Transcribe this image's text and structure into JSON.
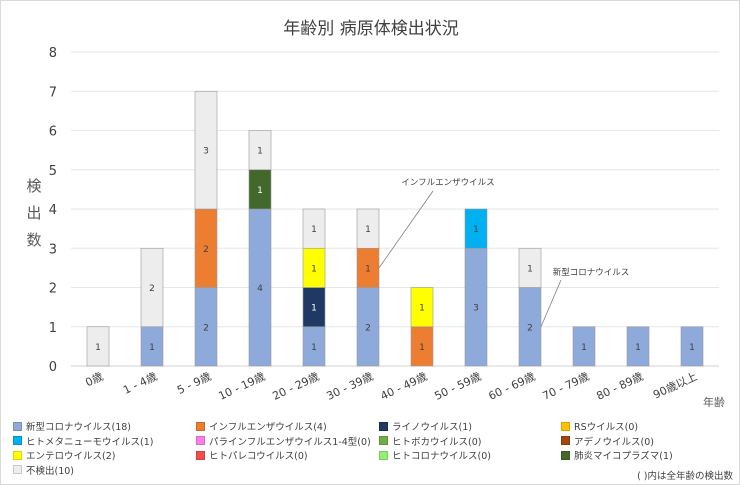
{
  "chart_data": {
    "type": "bar",
    "stacked": true,
    "title": "年齢別 病原体検出状況",
    "ylabel": "検出数",
    "xlabel": "年齢",
    "ylim": [
      0,
      8
    ],
    "yticks": [
      0,
      1,
      2,
      3,
      4,
      5,
      6,
      7,
      8
    ],
    "grid": true,
    "categories": [
      "0歳",
      "1 - 4歳",
      "5 - 9歳",
      "10 - 19歳",
      "20 - 29歳",
      "30 - 39歳",
      "40 - 49歳",
      "50 - 59歳",
      "60 - 69歳",
      "70 - 79歳",
      "80 - 89歳",
      "90歳以上"
    ],
    "series": [
      {
        "name": "新型コロナウイルス",
        "total": 18,
        "color": "#8eaadb",
        "values": [
          0,
          1,
          2,
          4,
          1,
          2,
          0,
          3,
          2,
          1,
          1,
          1
        ]
      },
      {
        "name": "インフルエンザウイルス",
        "total": 4,
        "color": "#ed7d31",
        "values": [
          0,
          0,
          2,
          0,
          0,
          1,
          1,
          0,
          0,
          0,
          0,
          0
        ]
      },
      {
        "name": "ライノウイルス",
        "total": 1,
        "color": "#203864",
        "values": [
          0,
          0,
          0,
          0,
          1,
          0,
          0,
          0,
          0,
          0,
          0,
          0
        ]
      },
      {
        "name": "RSウイルス",
        "total": 0,
        "color": "#ffc000",
        "values": [
          0,
          0,
          0,
          0,
          0,
          0,
          0,
          0,
          0,
          0,
          0,
          0
        ]
      },
      {
        "name": "ヒトメタニューモウイルス",
        "total": 1,
        "color": "#00b0f0",
        "values": [
          0,
          0,
          0,
          0,
          0,
          0,
          0,
          1,
          0,
          0,
          0,
          0
        ]
      },
      {
        "name": "パラインフルエンザウイルス1-4型",
        "total": 0,
        "color": "#ff7de8",
        "values": [
          0,
          0,
          0,
          0,
          0,
          0,
          0,
          0,
          0,
          0,
          0,
          0
        ]
      },
      {
        "name": "ヒトボカウイルス",
        "total": 0,
        "color": "#70ad47",
        "values": [
          0,
          0,
          0,
          0,
          0,
          0,
          0,
          0,
          0,
          0,
          0,
          0
        ]
      },
      {
        "name": "アデノウイルス",
        "total": 0,
        "color": "#9e480e",
        "values": [
          0,
          0,
          0,
          0,
          0,
          0,
          0,
          0,
          0,
          0,
          0,
          0
        ]
      },
      {
        "name": "エンテロウイルス",
        "total": 2,
        "color": "#ffff00",
        "values": [
          0,
          0,
          0,
          0,
          1,
          0,
          1,
          0,
          0,
          0,
          0,
          0
        ]
      },
      {
        "name": "ヒトパレコウイルス",
        "total": 0,
        "color": "#f04e4e",
        "values": [
          0,
          0,
          0,
          0,
          0,
          0,
          0,
          0,
          0,
          0,
          0,
          0
        ]
      },
      {
        "name": "ヒトコロナウイルス",
        "total": 0,
        "color": "#92f070",
        "values": [
          0,
          0,
          0,
          0,
          0,
          0,
          0,
          0,
          0,
          0,
          0,
          0
        ]
      },
      {
        "name": "肺炎マイコプラズマ",
        "total": 1,
        "color": "#43682b",
        "values": [
          0,
          0,
          0,
          1,
          0,
          0,
          0,
          0,
          0,
          0,
          0,
          0
        ]
      },
      {
        "name": "不検出",
        "total": 10,
        "color": "#ededed",
        "values": [
          1,
          2,
          3,
          1,
          1,
          1,
          0,
          0,
          1,
          0,
          0,
          0
        ]
      }
    ],
    "annotations": [
      {
        "text": "インフルエンザウイルス",
        "target_category": "30 - 39歳",
        "target_series": "インフルエンザウイルス"
      },
      {
        "text": "新型コロナウイルス",
        "target_category": "60 - 69歳",
        "target_series": "新型コロナウイルス"
      }
    ],
    "legend_position": "bottom",
    "footnote": "( )内は全年齢の検出数"
  }
}
